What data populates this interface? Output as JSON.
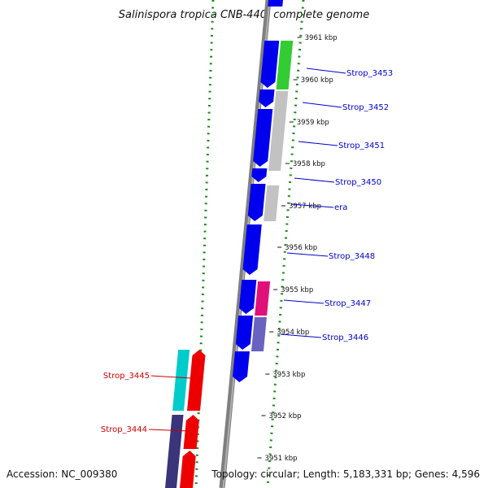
{
  "title": "Salinispora tropica CNB-440, complete genome",
  "accession": "Accession: NC_009380",
  "stats": "Topology: circular; Length: 5,183,331 bp; Genes: 4,596",
  "colors": {
    "backbone": "#7f7f7f",
    "cds": "#0000ee",
    "ticks": "#1e8c1e",
    "label_plus": "#0000cc",
    "label_minus": "#cc0000",
    "cog_green": "#33cc33",
    "cog_gray": "#c2c2c2",
    "cog_magenta": "#e0107a",
    "cog_slate": "#6a62c0",
    "cog_cyan": "#00cccc",
    "cog_red": "#ee0000",
    "cog_navy": "#3a347a"
  },
  "kbp_ticks": [
    "3961 kbp",
    "3960 kbp",
    "3959 kbp",
    "3958 kbp",
    "3957 kbp",
    "3956 kbp",
    "3955 kbp",
    "3954 kbp",
    "3953 kbp",
    "3952 kbp",
    "3951 kbp"
  ],
  "genes": [
    {
      "label": "Strop_3453",
      "strand": "+"
    },
    {
      "label": "Strop_3452",
      "strand": "+"
    },
    {
      "label": "Strop_3451",
      "strand": "+"
    },
    {
      "label": "Strop_3450",
      "strand": "+"
    },
    {
      "label": "era",
      "strand": "+"
    },
    {
      "label": "Strop_3448",
      "strand": "+"
    },
    {
      "label": "Strop_3447",
      "strand": "+"
    },
    {
      "label": "Strop_3446",
      "strand": "+"
    },
    {
      "label": "Strop_3445",
      "strand": "-"
    },
    {
      "label": "Strop_3444",
      "strand": "-"
    }
  ]
}
